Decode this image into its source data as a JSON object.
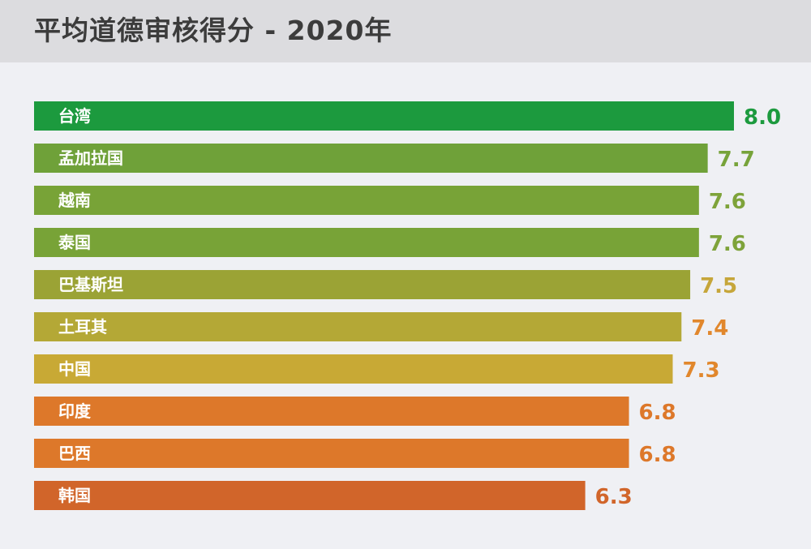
{
  "title": "平均道德审核得分 - 2020年",
  "chart_data": {
    "type": "bar",
    "orientation": "horizontal",
    "title": "平均道德审核得分 - 2020年",
    "xlabel": "",
    "ylabel": "",
    "xlim": [
      0,
      8.0
    ],
    "grid": false,
    "legend": "none",
    "categories": [
      "台湾",
      "孟加拉国",
      "越南",
      "泰国",
      "巴基斯坦",
      "土耳其",
      "中国",
      "印度",
      "巴西",
      "韩国"
    ],
    "values": [
      8.0,
      7.7,
      7.6,
      7.6,
      7.5,
      7.4,
      7.3,
      6.8,
      6.8,
      6.3
    ],
    "value_labels": [
      "8.0",
      "7.7",
      "7.6",
      "7.6",
      "7.5",
      "7.4",
      "7.3",
      "6.8",
      "6.8",
      "6.3"
    ],
    "bar_colors": [
      "#1c9a3e",
      "#6fa139",
      "#78a337",
      "#78a337",
      "#9ba335",
      "#b4a836",
      "#c8a935",
      "#dd782a",
      "#dd782a",
      "#d1652a"
    ],
    "value_label_colors": [
      "#1c9a3e",
      "#77a33a",
      "#7ea33a",
      "#7ea33a",
      "#c6a63a",
      "#e1872c",
      "#e1872c",
      "#dd782a",
      "#dd782a",
      "#d1652a"
    ]
  }
}
